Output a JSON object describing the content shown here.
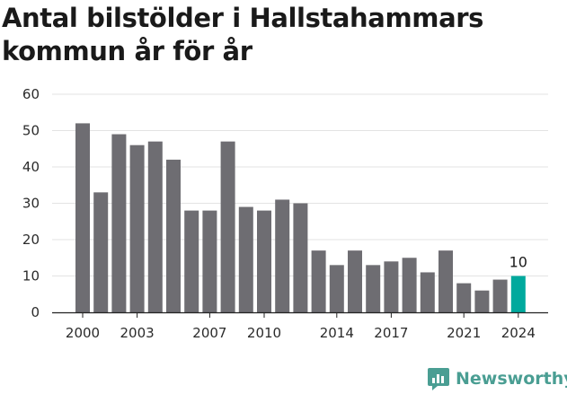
{
  "title": "Antal bilstölder i Hallstahammars kommun år för år",
  "brand": {
    "name": "Newsworthy",
    "icon": "newsworthy-logo-icon",
    "color": "#4a9e93"
  },
  "chart_data": {
    "type": "bar",
    "title": "Antal bilstölder i Hallstahammars kommun år för år",
    "xlabel": "",
    "ylabel": "",
    "categories": [
      "2000",
      "2001",
      "2002",
      "2003",
      "2004",
      "2005",
      "2006",
      "2007",
      "2008",
      "2009",
      "2010",
      "2011",
      "2012",
      "2013",
      "2014",
      "2015",
      "2016",
      "2017",
      "2018",
      "2019",
      "2020",
      "2021",
      "2022",
      "2023",
      "2024"
    ],
    "values": [
      52,
      33,
      49,
      46,
      47,
      42,
      28,
      28,
      47,
      29,
      28,
      31,
      30,
      17,
      13,
      17,
      13,
      14,
      15,
      11,
      17,
      8,
      6,
      9,
      10
    ],
    "x_tick_labels": [
      "2000",
      "2003",
      "2007",
      "2010",
      "2014",
      "2017",
      "2021",
      "2024"
    ],
    "y_ticks": [
      0,
      10,
      20,
      30,
      40,
      50,
      60
    ],
    "ylim": [
      0,
      60
    ],
    "grid": true,
    "annotations": [
      {
        "category": "2024",
        "text": "10"
      }
    ],
    "colors": {
      "bar": "#6e6d72",
      "highlight": "#00a99d",
      "grid": "#e3e3e3",
      "axis": "#222222"
    },
    "highlight_category": "2024"
  }
}
